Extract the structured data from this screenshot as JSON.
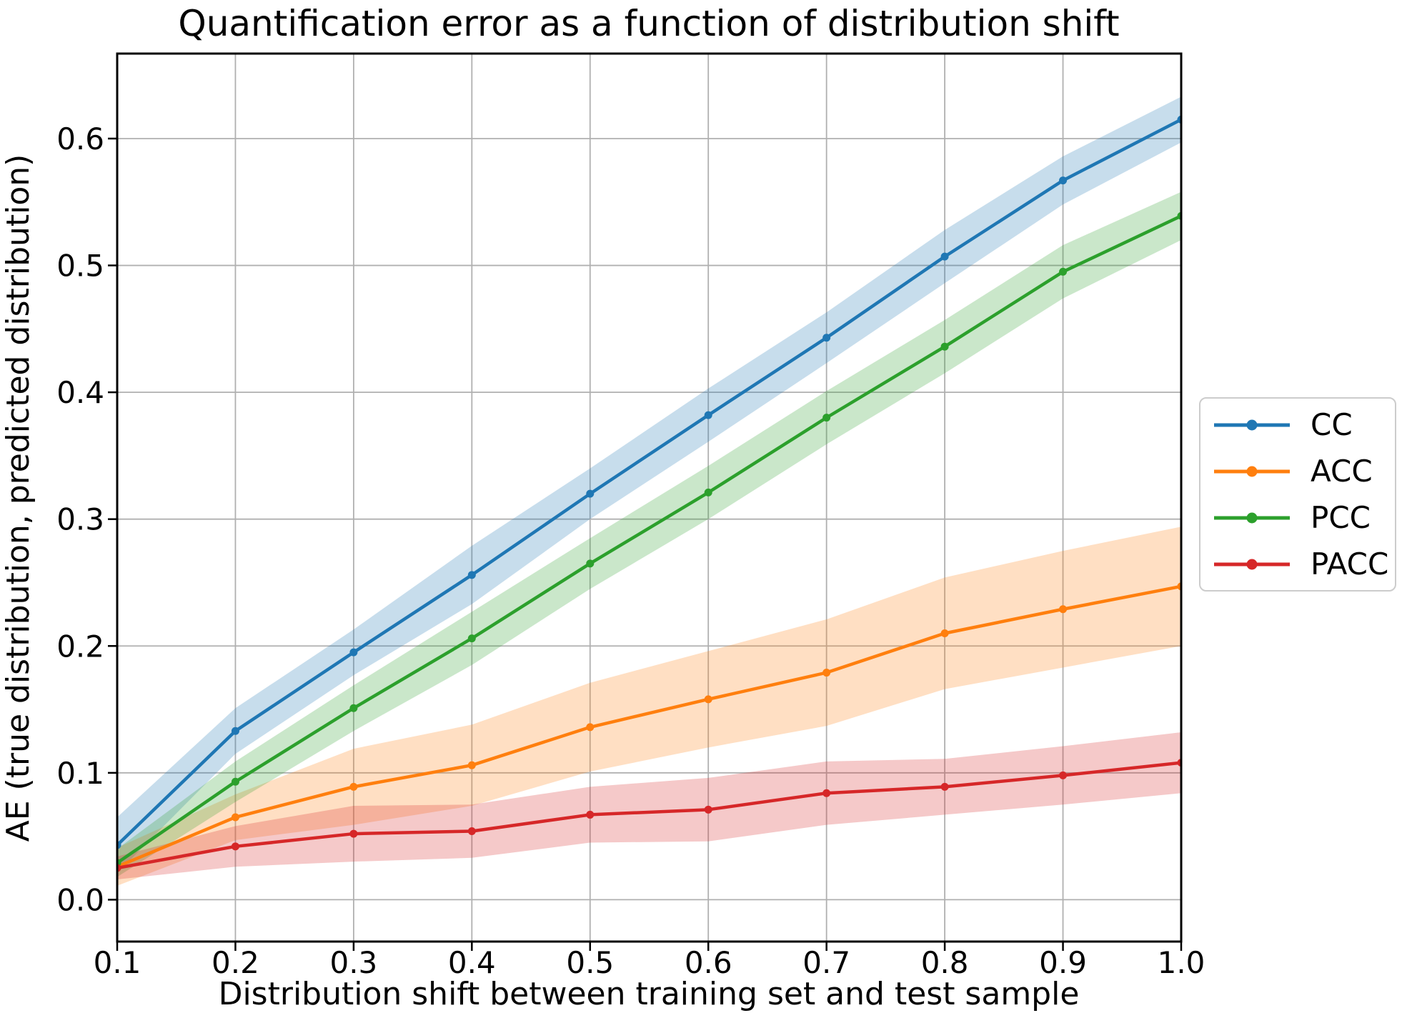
{
  "title": "Quantification error as a function of distribution shift",
  "axes": {
    "x": {
      "label": "Distribution shift between training set and test sample",
      "tick_labels": [
        "0.1",
        "0.2",
        "0.3",
        "0.4",
        "0.5",
        "0.6",
        "0.7",
        "0.8",
        "0.9",
        "1.0"
      ]
    },
    "y": {
      "label": "AE (true distribution, predicted distribution)",
      "tick_labels": [
        "0.0",
        "0.1",
        "0.2",
        "0.3",
        "0.4",
        "0.5",
        "0.6"
      ]
    }
  },
  "legend": {
    "items": [
      {
        "label": "CC",
        "color": "#1f77b4"
      },
      {
        "label": "ACC",
        "color": "#ff7f0e"
      },
      {
        "label": "PCC",
        "color": "#2ca02c"
      },
      {
        "label": "PACC",
        "color": "#d62728"
      }
    ]
  },
  "colors": {
    "grid": "#b0b0b0",
    "spine": "#000000",
    "legend_border": "#cccccc"
  },
  "chart_data": {
    "type": "line",
    "title": "Quantification error as a function of distribution shift",
    "xlabel": "Distribution shift between training set and test sample",
    "ylabel": "AE (true distribution, predicted distribution)",
    "grid": true,
    "legend_position": "center right outside",
    "band_opacity": 0.25,
    "x": [
      0.1,
      0.2,
      0.3,
      0.4,
      0.5,
      0.6,
      0.7,
      0.8,
      0.9,
      1.0
    ],
    "x_range": [
      0.1,
      1.0
    ],
    "y_range": [
      -0.033,
      0.667
    ],
    "x_ticks": [
      0.1,
      0.2,
      0.3,
      0.4,
      0.5,
      0.6,
      0.7,
      0.8,
      0.9,
      1.0
    ],
    "y_ticks": [
      0.0,
      0.1,
      0.2,
      0.3,
      0.4,
      0.5,
      0.6
    ],
    "series": [
      {
        "name": "CC",
        "color": "#1f77b4",
        "values": [
          0.043,
          0.133,
          0.195,
          0.256,
          0.32,
          0.382,
          0.443,
          0.507,
          0.567,
          0.615
        ],
        "ci_half": [
          0.022,
          0.018,
          0.018,
          0.023,
          0.02,
          0.021,
          0.02,
          0.021,
          0.019,
          0.018
        ]
      },
      {
        "name": "ACC",
        "color": "#ff7f0e",
        "values": [
          0.026,
          0.065,
          0.089,
          0.106,
          0.136,
          0.158,
          0.179,
          0.21,
          0.229,
          0.247
        ],
        "ci_half": [
          0.015,
          0.018,
          0.03,
          0.032,
          0.035,
          0.038,
          0.042,
          0.044,
          0.046,
          0.047
        ]
      },
      {
        "name": "PCC",
        "color": "#2ca02c",
        "values": [
          0.029,
          0.093,
          0.151,
          0.206,
          0.265,
          0.321,
          0.38,
          0.436,
          0.495,
          0.539
        ],
        "ci_half": [
          0.011,
          0.016,
          0.018,
          0.021,
          0.02,
          0.021,
          0.021,
          0.021,
          0.021,
          0.019
        ]
      },
      {
        "name": "PACC",
        "color": "#d62728",
        "values": [
          0.025,
          0.042,
          0.052,
          0.054,
          0.067,
          0.071,
          0.084,
          0.089,
          0.098,
          0.108
        ],
        "ci_half": [
          0.009,
          0.016,
          0.022,
          0.021,
          0.022,
          0.025,
          0.025,
          0.022,
          0.023,
          0.024
        ]
      }
    ]
  }
}
